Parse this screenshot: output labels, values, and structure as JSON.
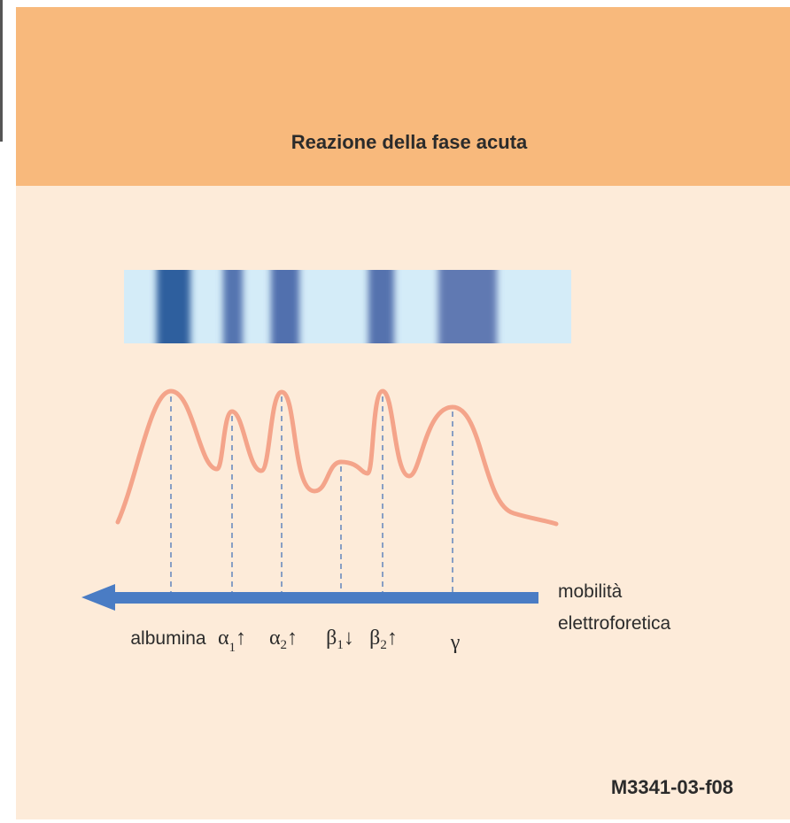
{
  "title": "Reazione della fase acuta",
  "axis_label": {
    "line1": "mobilità",
    "line2": "elettroforetica"
  },
  "fractions": [
    {
      "symbol": "albumina"
    },
    {
      "symbol": "α",
      "subscript": "1",
      "arrow": "↑"
    },
    {
      "symbol": "α",
      "subscript": "2",
      "arrow": "↑"
    },
    {
      "symbol": "β",
      "subscript": "1",
      "arrow": "↓"
    },
    {
      "symbol": "β",
      "subscript": "2",
      "arrow": "↑"
    },
    {
      "symbol": "γ"
    }
  ],
  "figure_id": "M3341-03-f08"
}
